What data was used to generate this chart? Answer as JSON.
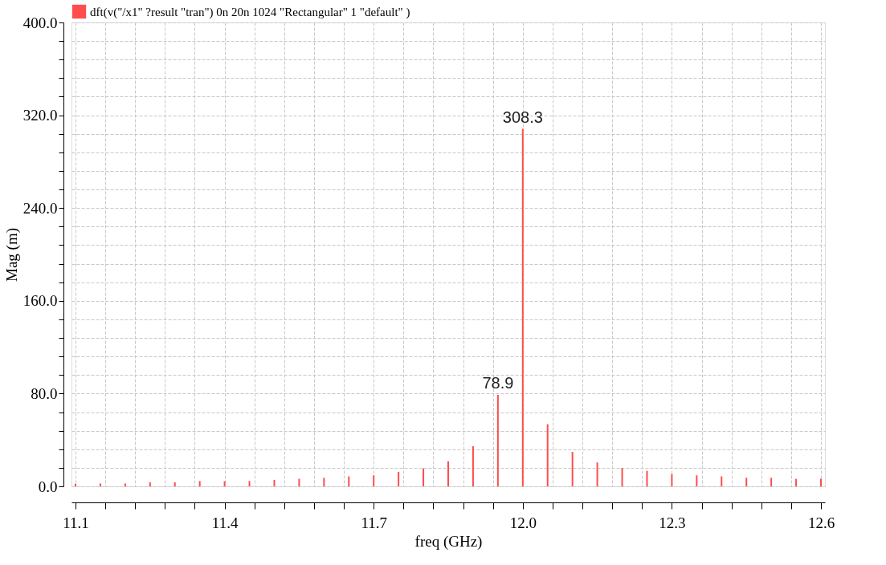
{
  "chart_data": {
    "type": "bar",
    "xlabel": "freq (GHz)",
    "ylabel": "Mag (m)",
    "x": [
      11.1,
      11.15,
      11.2,
      11.25,
      11.3,
      11.35,
      11.4,
      11.45,
      11.5,
      11.55,
      11.6,
      11.65,
      11.7,
      11.75,
      11.8,
      11.85,
      11.9,
      11.95,
      12.0,
      12.05,
      12.1,
      12.15,
      12.2,
      12.25,
      12.3,
      12.35,
      12.4,
      12.45,
      12.5,
      12.55,
      12.6
    ],
    "series": [
      {
        "name": "dft(v(\"/x1\" ?result \"tran\") 0n 20n 1024 \"Rectangular\" 1 \"default\" )",
        "color": "#ff4d4d",
        "values": [
          2.3,
          2.5,
          2.5,
          3.5,
          3.5,
          4.6,
          4.4,
          4.6,
          5.6,
          6.5,
          7.4,
          8.6,
          9.5,
          12.5,
          15.5,
          21.6,
          34.6,
          78.9,
          308.3,
          53.6,
          29.7,
          20.6,
          15.8,
          13.4,
          10.7,
          9.5,
          8.6,
          7.4,
          7.4,
          6.5,
          6.5
        ],
        "value_labels": [
          null,
          null,
          null,
          null,
          null,
          null,
          null,
          null,
          null,
          null,
          null,
          null,
          null,
          null,
          null,
          null,
          null,
          "78.9",
          "308.3",
          null,
          null,
          null,
          null,
          null,
          null,
          null,
          null,
          null,
          null,
          null,
          null
        ]
      }
    ],
    "xlim": [
      11.1,
      12.6
    ],
    "ylim": [
      0,
      400
    ],
    "xticks": [
      {
        "value": 11.1,
        "label": "11.1"
      },
      {
        "value": 11.16,
        "label": null
      },
      {
        "value": 11.22,
        "label": null
      },
      {
        "value": 11.28,
        "label": null
      },
      {
        "value": 11.34,
        "label": null
      },
      {
        "value": 11.4,
        "label": "11.4"
      },
      {
        "value": 11.46,
        "label": null
      },
      {
        "value": 11.52,
        "label": null
      },
      {
        "value": 11.58,
        "label": null
      },
      {
        "value": 11.64,
        "label": null
      },
      {
        "value": 11.7,
        "label": "11.7"
      },
      {
        "value": 11.76,
        "label": null
      },
      {
        "value": 11.82,
        "label": null
      },
      {
        "value": 11.88,
        "label": null
      },
      {
        "value": 11.94,
        "label": null
      },
      {
        "value": 12.0,
        "label": "12.0"
      },
      {
        "value": 12.06,
        "label": null
      },
      {
        "value": 12.12,
        "label": null
      },
      {
        "value": 12.18,
        "label": null
      },
      {
        "value": 12.24,
        "label": null
      },
      {
        "value": 12.3,
        "label": "12.3"
      },
      {
        "value": 12.36,
        "label": null
      },
      {
        "value": 12.42,
        "label": null
      },
      {
        "value": 12.48,
        "label": null
      },
      {
        "value": 12.54,
        "label": null
      },
      {
        "value": 12.6,
        "label": "12.6"
      }
    ],
    "yticks": [
      {
        "value": 0,
        "label": "0.0"
      },
      {
        "value": 16,
        "label": null
      },
      {
        "value": 32,
        "label": null
      },
      {
        "value": 48,
        "label": null
      },
      {
        "value": 64,
        "label": null
      },
      {
        "value": 80,
        "label": "80.0"
      },
      {
        "value": 96,
        "label": null
      },
      {
        "value": 112,
        "label": null
      },
      {
        "value": 128,
        "label": null
      },
      {
        "value": 144,
        "label": null
      },
      {
        "value": 160,
        "label": "160.0"
      },
      {
        "value": 176,
        "label": null
      },
      {
        "value": 192,
        "label": null
      },
      {
        "value": 208,
        "label": null
      },
      {
        "value": 224,
        "label": null
      },
      {
        "value": 240,
        "label": "240.0"
      },
      {
        "value": 256,
        "label": null
      },
      {
        "value": 272,
        "label": null
      },
      {
        "value": 288,
        "label": null
      },
      {
        "value": 304,
        "label": null
      },
      {
        "value": 320,
        "label": "320.0"
      },
      {
        "value": 336,
        "label": null
      },
      {
        "value": 352,
        "label": null
      },
      {
        "value": 368,
        "label": null
      },
      {
        "value": 384,
        "label": null
      },
      {
        "value": 400,
        "label": "400.0"
      }
    ],
    "grid": true,
    "legend": "top left"
  }
}
